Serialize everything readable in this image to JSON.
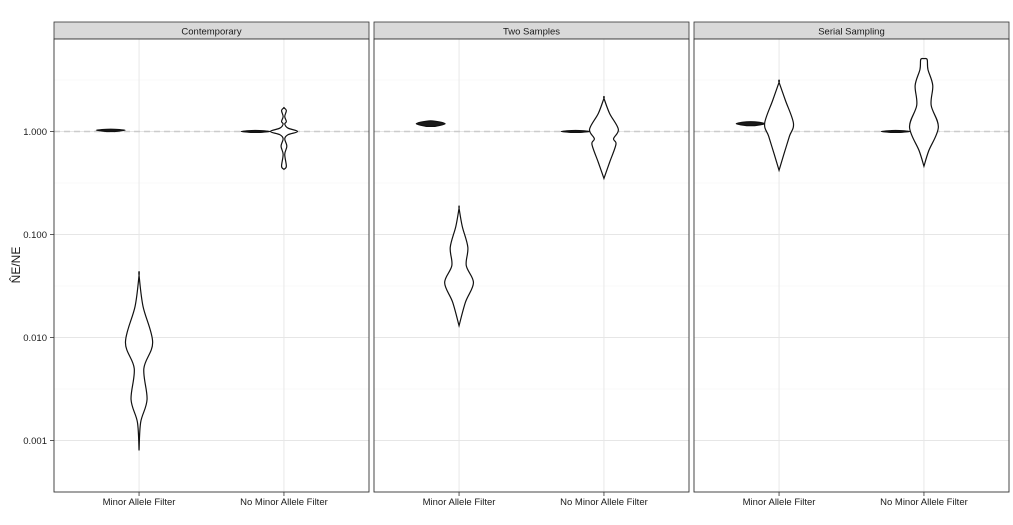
{
  "chart_data": {
    "type": "violin",
    "ylabel": "N̂E/NE",
    "yscale": "log10",
    "ylim": [
      0.0003,
      10
    ],
    "yticks": [
      {
        "value": 0.001,
        "label": "0.001"
      },
      {
        "value": 0.01,
        "label": "0.010"
      },
      {
        "value": 0.1,
        "label": "0.100"
      },
      {
        "value": 1,
        "label": "1.000"
      }
    ],
    "reference_line": {
      "value": 1,
      "style": "dashed",
      "color": "#cccccc"
    },
    "grid": true,
    "background": "#ffffff",
    "strip_color": "#d9d9d9",
    "panels": [
      {
        "title": "Contemporary",
        "categories": [
          "Minor Allele Filter",
          "No Minor Allele Filter"
        ],
        "violins": [
          {
            "category": "Minor Allele Filter",
            "offset": -0.18,
            "shape": [
              [
                1.0,
                0.25
              ],
              [
                1.03,
                0.9
              ],
              [
                1.05,
                0.25
              ]
            ]
          },
          {
            "category": "Minor Allele Filter",
            "offset": 0.0,
            "shape": [
              [
                0.0008,
                0
              ],
              [
                0.0015,
                0.1
              ],
              [
                0.0025,
                0.5
              ],
              [
                0.005,
                0.3
              ],
              [
                0.009,
                0.85
              ],
              [
                0.02,
                0.25
              ],
              [
                0.04,
                0
              ]
            ]
          },
          {
            "category": "No Minor Allele Filter",
            "offset": -0.18,
            "shape": [
              [
                0.98,
                0.25
              ],
              [
                1.0,
                0.9
              ],
              [
                1.02,
                0.25
              ]
            ]
          },
          {
            "category": "No Minor Allele Filter",
            "offset": 0.0,
            "shape": [
              [
                0.43,
                0
              ],
              [
                0.46,
                0.15
              ],
              [
                0.6,
                0.05
              ],
              [
                0.72,
                0.18
              ],
              [
                0.85,
                0.05
              ],
              [
                0.93,
                0.25
              ],
              [
                1.0,
                0.85
              ],
              [
                1.08,
                0.25
              ],
              [
                1.18,
                0.05
              ],
              [
                1.25,
                0.15
              ],
              [
                1.4,
                0.05
              ],
              [
                1.6,
                0.15
              ],
              [
                1.7,
                0
              ]
            ]
          }
        ]
      },
      {
        "title": "Two Samples",
        "categories": [
          "Minor Allele Filter",
          "No Minor Allele Filter"
        ],
        "violins": [
          {
            "category": "Minor Allele Filter",
            "offset": -0.18,
            "shape": [
              [
                1.12,
                0.25
              ],
              [
                1.19,
                0.9
              ],
              [
                1.26,
                0.25
              ]
            ]
          },
          {
            "category": "Minor Allele Filter",
            "offset": 0.0,
            "shape": [
              [
                0.013,
                0
              ],
              [
                0.022,
                0.4
              ],
              [
                0.034,
                0.9
              ],
              [
                0.05,
                0.45
              ],
              [
                0.075,
                0.55
              ],
              [
                0.12,
                0.2
              ],
              [
                0.18,
                0
              ]
            ]
          },
          {
            "category": "No Minor Allele Filter",
            "offset": -0.18,
            "shape": [
              [
                0.98,
                0.25
              ],
              [
                1.0,
                0.9
              ],
              [
                1.02,
                0.25
              ]
            ]
          },
          {
            "category": "No Minor Allele Filter",
            "offset": 0.0,
            "shape": [
              [
                0.35,
                0
              ],
              [
                0.5,
                0.35
              ],
              [
                0.75,
                0.75
              ],
              [
                0.85,
                0.6
              ],
              [
                1.05,
                0.9
              ],
              [
                1.5,
                0.35
              ],
              [
                2.1,
                0
              ]
            ]
          }
        ]
      },
      {
        "title": "Serial Sampling",
        "categories": [
          "Minor Allele Filter",
          "No Minor Allele Filter"
        ],
        "violins": [
          {
            "category": "Minor Allele Filter",
            "offset": -0.18,
            "shape": [
              [
                1.14,
                0.25
              ],
              [
                1.19,
                0.9
              ],
              [
                1.24,
                0.25
              ]
            ]
          },
          {
            "category": "Minor Allele Filter",
            "offset": 0.0,
            "shape": [
              [
                0.42,
                0
              ],
              [
                0.6,
                0.3
              ],
              [
                0.9,
                0.65
              ],
              [
                1.2,
                0.9
              ],
              [
                2.0,
                0.4
              ],
              [
                3.0,
                0
              ]
            ]
          },
          {
            "category": "No Minor Allele Filter",
            "offset": -0.18,
            "shape": [
              [
                0.98,
                0.25
              ],
              [
                1.0,
                0.9
              ],
              [
                1.02,
                0.25
              ]
            ]
          },
          {
            "category": "No Minor Allele Filter",
            "offset": 0.0,
            "shape": [
              [
                0.46,
                0
              ],
              [
                0.65,
                0.3
              ],
              [
                1.1,
                0.9
              ],
              [
                1.8,
                0.45
              ],
              [
                2.8,
                0.55
              ],
              [
                4.0,
                0.25
              ],
              [
                5.0,
                0.2
              ],
              [
                5.1,
                0
              ]
            ]
          }
        ]
      }
    ]
  }
}
